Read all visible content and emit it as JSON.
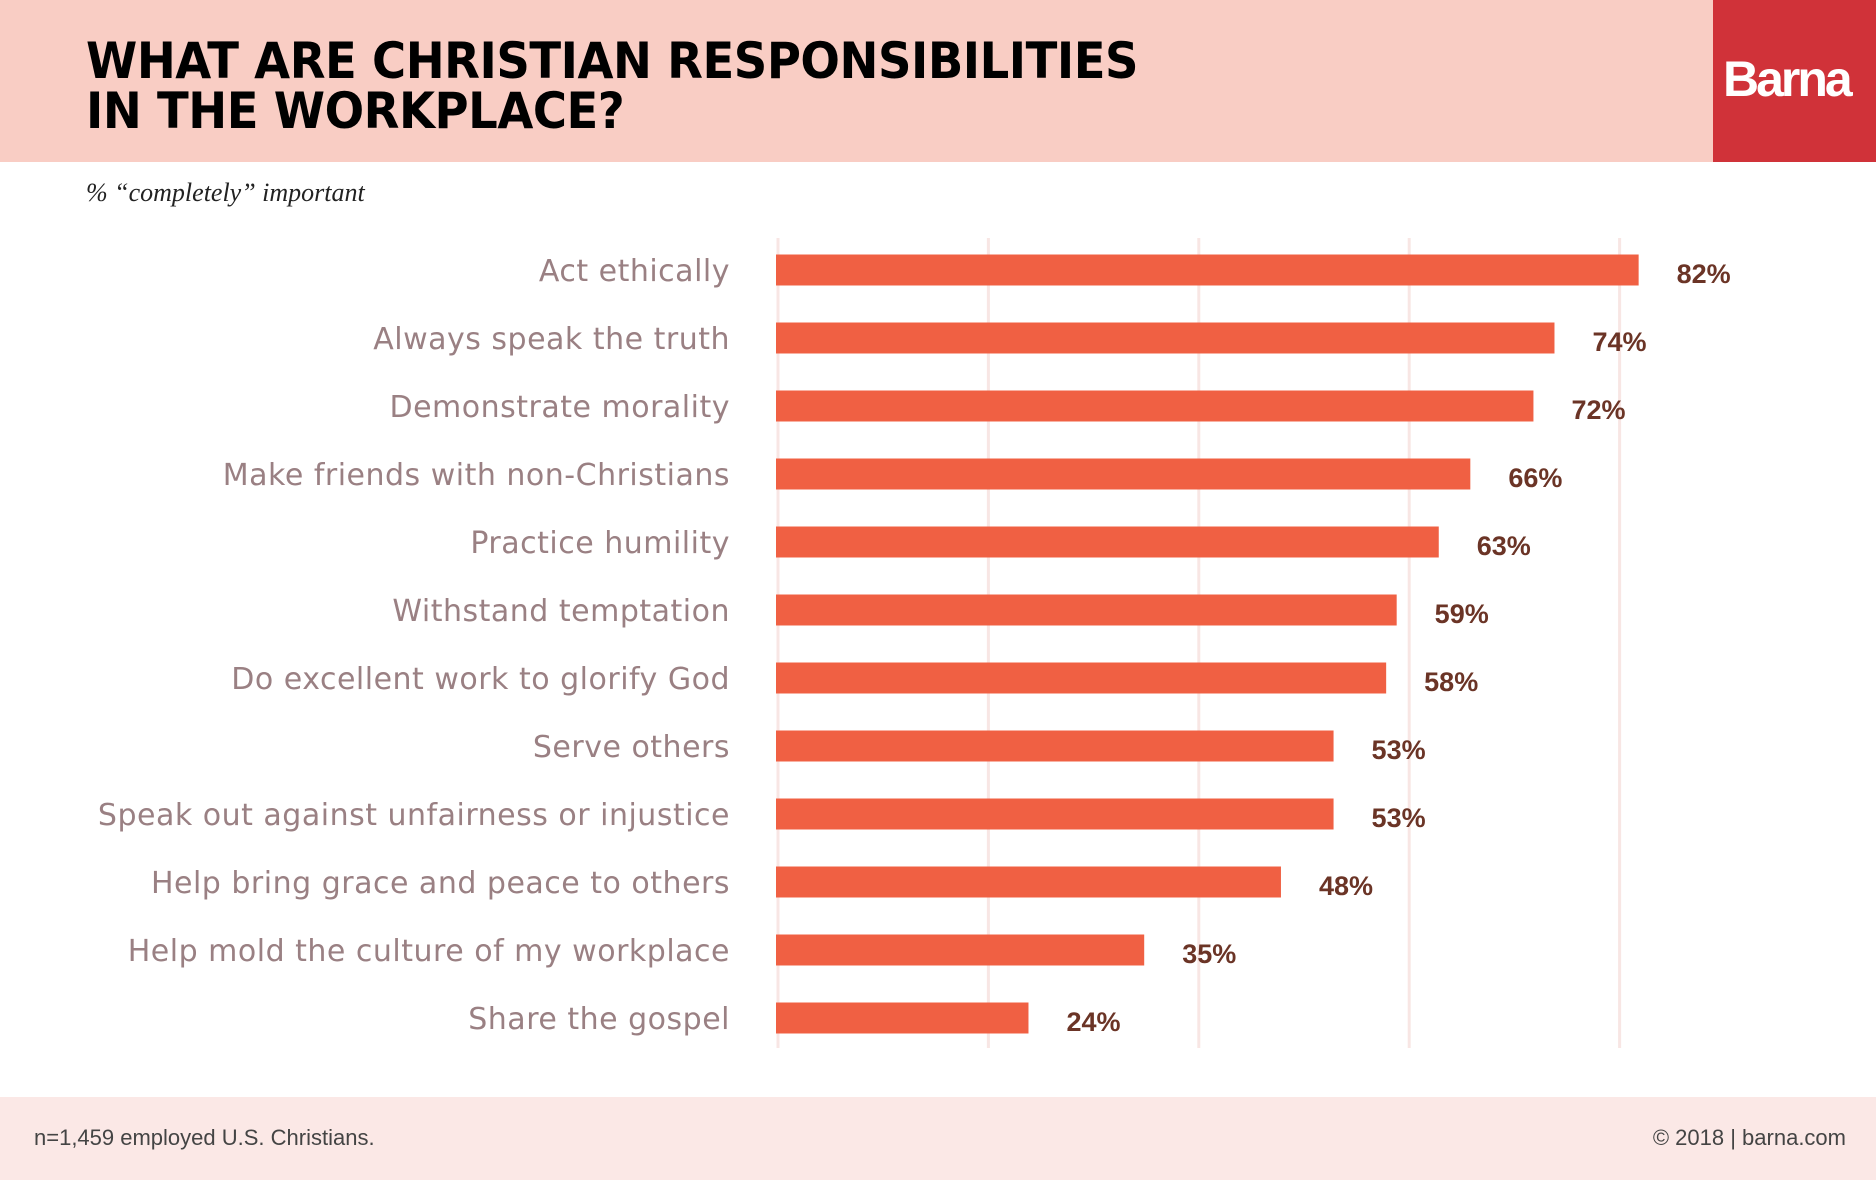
{
  "header": {
    "title_line1": "WHAT ARE CHRISTIAN RESPONSIBILITIES",
    "title_line2": "IN THE WORKPLACE?",
    "logo": "Barna"
  },
  "colors": {
    "bar": "#f06043",
    "header_bg": "#f9cdc4",
    "logo_bg": "#d03239",
    "label": "#9a8083",
    "value": "#6b3426",
    "grid": "#f8e6e4"
  },
  "footer": {
    "note": "n=1,459 employed U.S. Christians.",
    "copyright": "© 2018 | barna.com"
  },
  "chart_data": {
    "type": "bar",
    "orientation": "horizontal",
    "subtitle": "% “completely” important",
    "categories": [
      "Act ethically",
      "Always speak the truth",
      "Demonstrate morality",
      "Make friends with non-Christians",
      "Practice humility",
      "Withstand temptation",
      "Do excellent work to glorify God",
      "Serve others",
      "Speak out against unfairness or injustice",
      "Help bring grace and peace to others",
      "Help mold the culture of my workplace",
      "Share the gospel"
    ],
    "values": [
      82,
      74,
      72,
      66,
      63,
      59,
      58,
      53,
      53,
      48,
      35,
      24
    ],
    "value_labels": [
      "82%",
      "74%",
      "72%",
      "66%",
      "63%",
      "59%",
      "58%",
      "53%",
      "53%",
      "48%",
      "35%",
      "24%"
    ],
    "xlim": [
      0,
      100
    ],
    "gridlines": [
      0,
      20,
      40,
      60,
      80
    ],
    "grid": true
  }
}
